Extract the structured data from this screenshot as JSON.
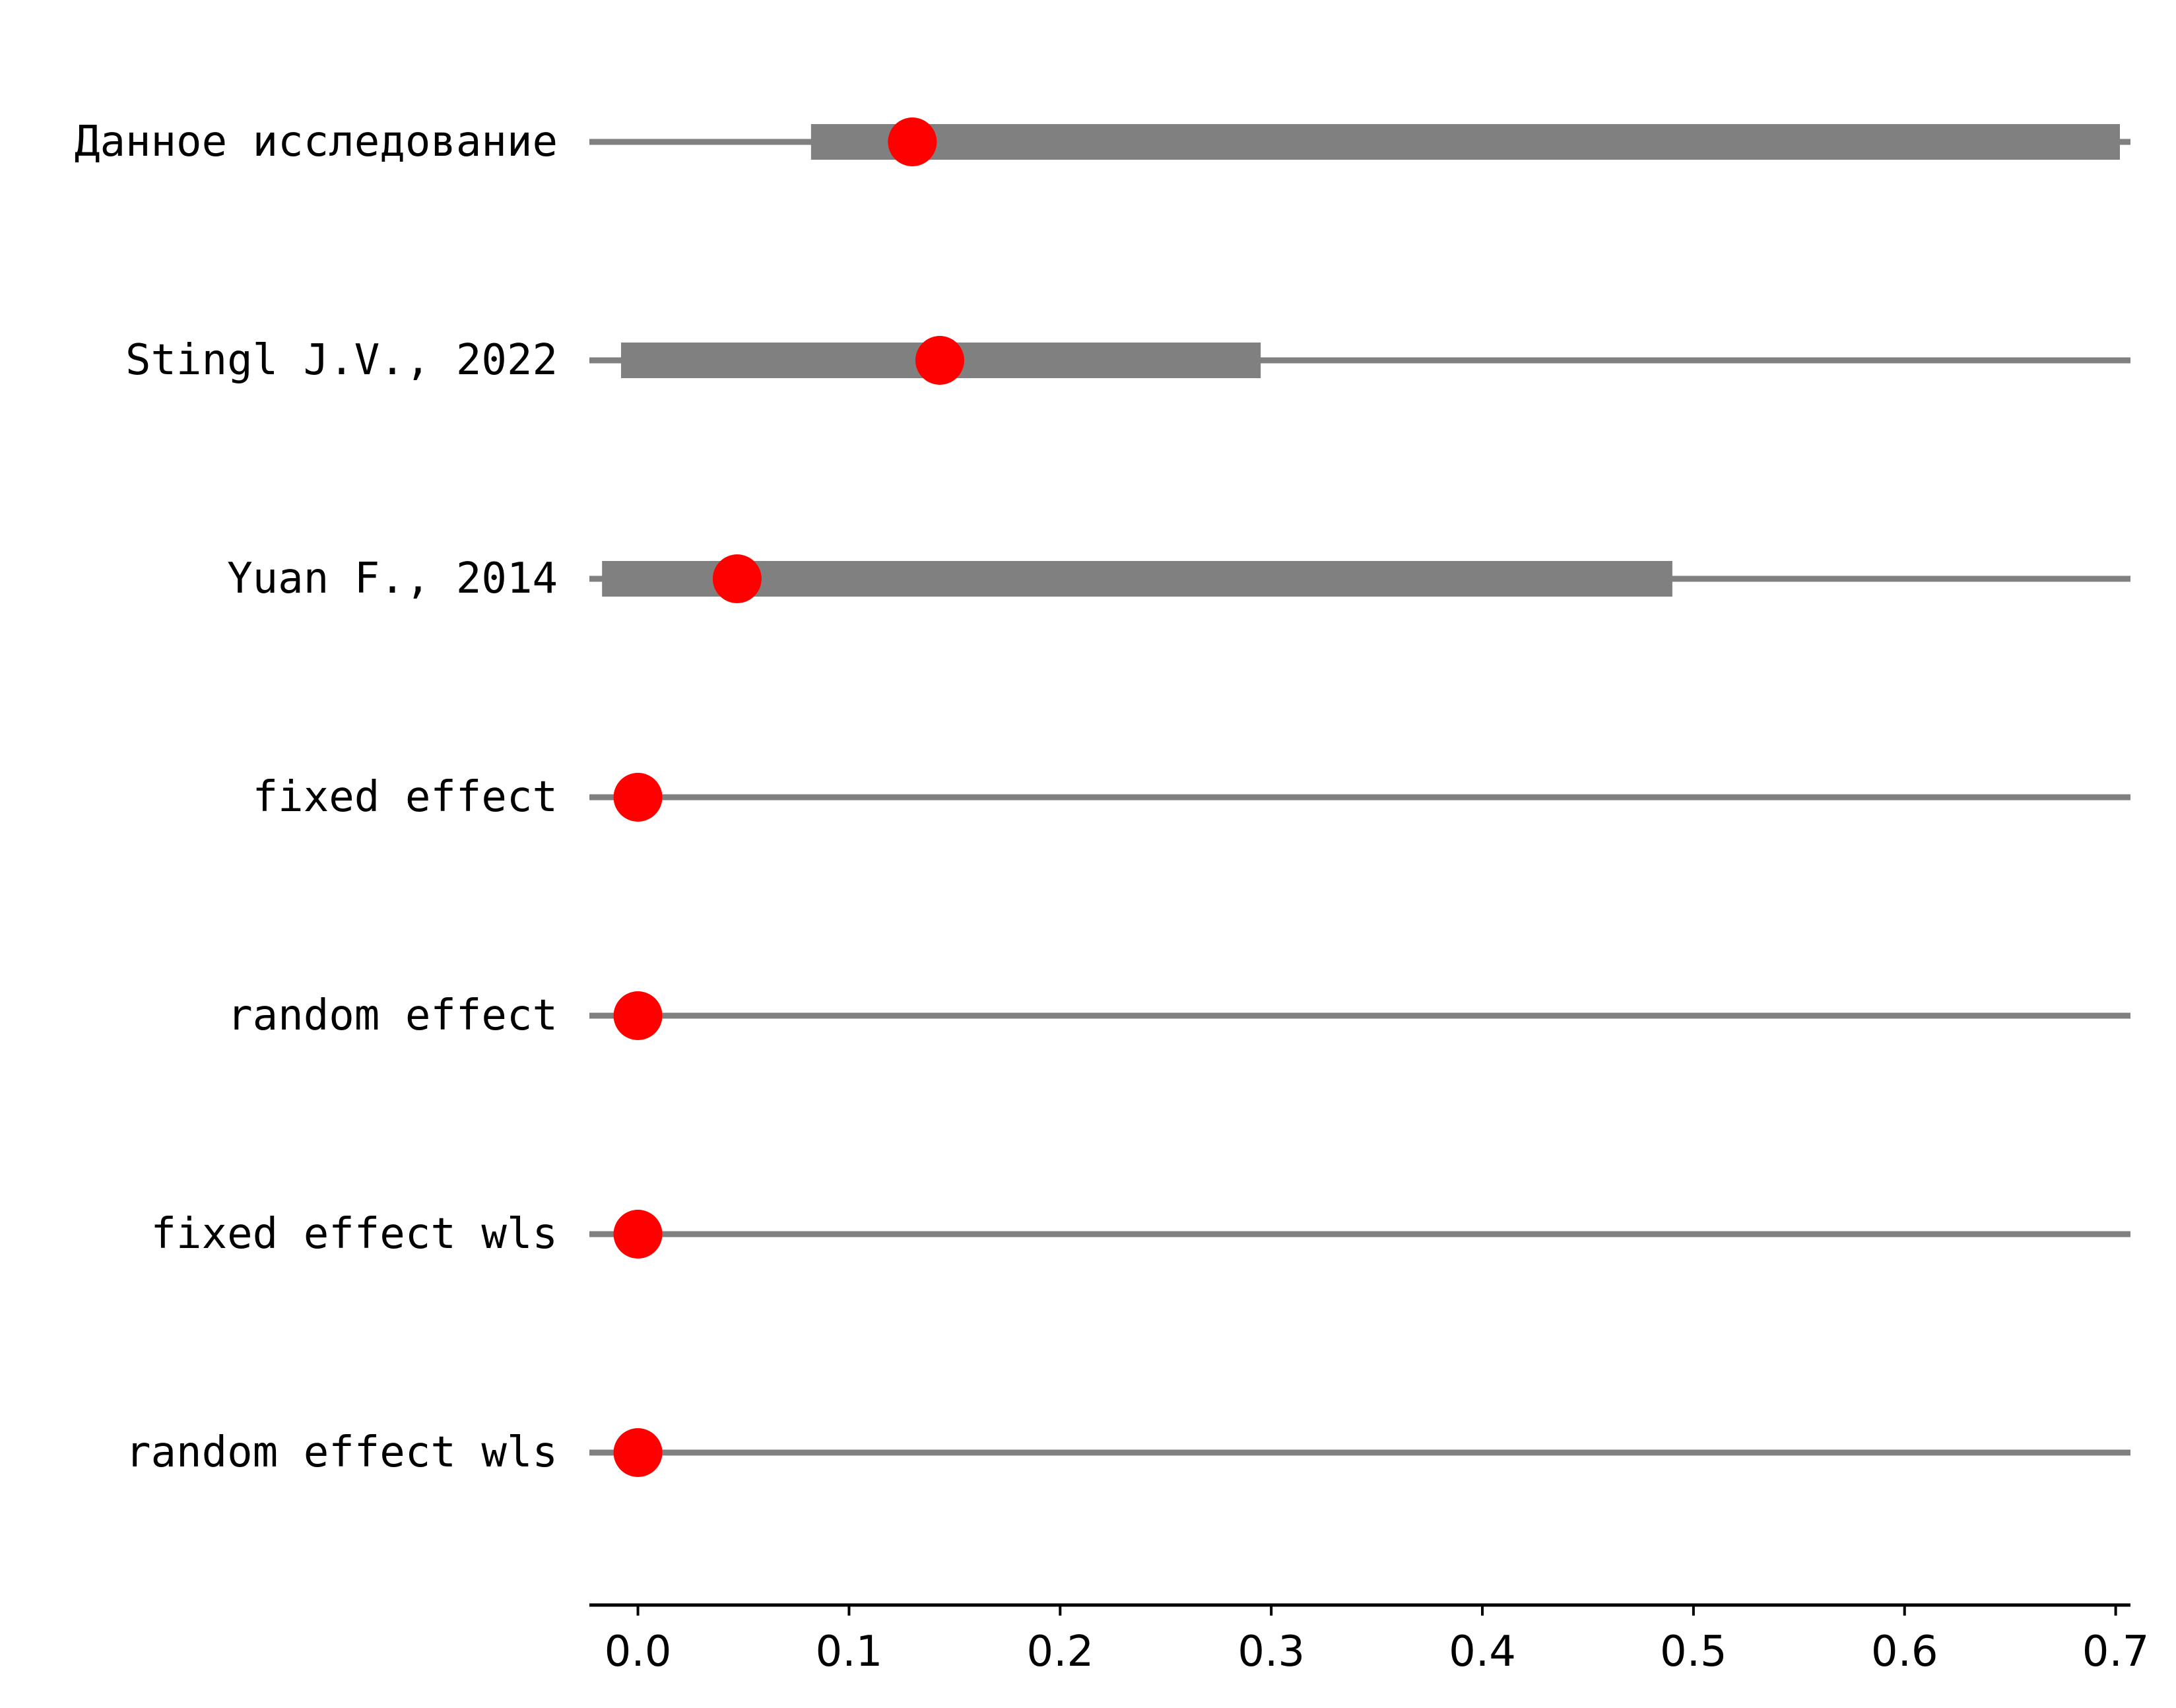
{
  "chart_data": {
    "type": "forest",
    "x_axis": {
      "lim": [
        -0.023,
        0.707
      ],
      "ticks": [
        0.0,
        0.1,
        0.2,
        0.3,
        0.4,
        0.5,
        0.6,
        0.7
      ],
      "tick_labels": [
        "0.0",
        "0.1",
        "0.2",
        "0.3",
        "0.4",
        "0.5",
        "0.6",
        "0.7"
      ]
    },
    "grid": false,
    "rows": [
      {
        "label": "Данное исследование",
        "estimate": 0.13,
        "ci_low": 0.082,
        "ci_high": 0.702,
        "range_low": -0.023,
        "range_high": 0.707
      },
      {
        "label": "Stingl J.V., 2022",
        "estimate": 0.143,
        "ci_low": -0.008,
        "ci_high": 0.295,
        "range_low": -0.023,
        "range_high": 0.707
      },
      {
        "label": "Yuan F., 2014",
        "estimate": 0.047,
        "ci_low": -0.017,
        "ci_high": 0.49,
        "range_low": -0.023,
        "range_high": 0.707
      },
      {
        "label": "fixed effect",
        "estimate": 0.0,
        "ci_low": null,
        "ci_high": null,
        "range_low": -0.023,
        "range_high": 0.707
      },
      {
        "label": "random effect",
        "estimate": 0.0,
        "ci_low": null,
        "ci_high": null,
        "range_low": -0.023,
        "range_high": 0.707
      },
      {
        "label": "fixed effect wls",
        "estimate": 0.0,
        "ci_low": null,
        "ci_high": null,
        "range_low": -0.023,
        "range_high": 0.707
      },
      {
        "label": "random effect wls",
        "estimate": 0.0,
        "ci_low": null,
        "ci_high": null,
        "range_low": -0.023,
        "range_high": 0.707
      }
    ],
    "colors": {
      "line": "#808080",
      "bar": "#808080",
      "point": "#ff0000",
      "axis": "#000000"
    }
  }
}
